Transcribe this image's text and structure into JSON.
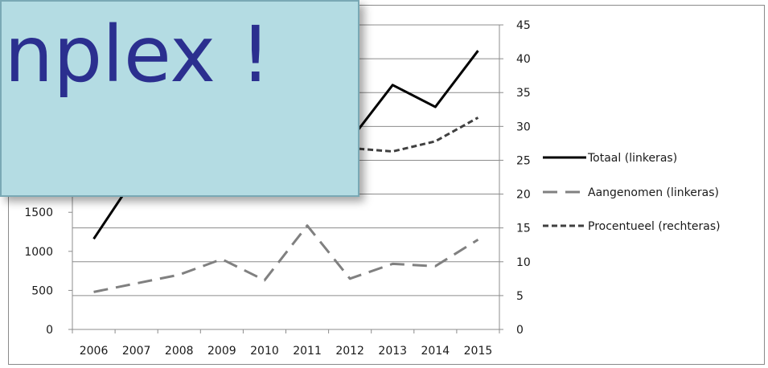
{
  "chart_data": {
    "type": "line",
    "categories": [
      "2006",
      "2007",
      "2008",
      "2009",
      "2010",
      "2011",
      "2012",
      "2013",
      "2014",
      "2015"
    ],
    "series": [
      {
        "name": "Totaal (linkeras)",
        "axis": "left",
        "style": "solid",
        "color": "#000000",
        "values": [
          1160,
          1980,
          null,
          null,
          null,
          null,
          2420,
          3130,
          2850,
          3570
        ]
      },
      {
        "name": "Aangenomen (linkeras)",
        "axis": "left",
        "style": "long-dash",
        "color": "#808080",
        "values": [
          480,
          590,
          700,
          900,
          630,
          1330,
          650,
          840,
          810,
          1150
        ]
      },
      {
        "name": "Procentueel (rechteras)",
        "axis": "right",
        "style": "short-dash",
        "color": "#404040",
        "values": [
          null,
          null,
          null,
          null,
          null,
          null,
          26.8,
          26.3,
          27.8,
          31.3
        ]
      }
    ],
    "left_axis": {
      "ticks": [
        0,
        500,
        1000,
        1500
      ],
      "ylim": [
        0,
        3900
      ]
    },
    "right_axis": {
      "ticks": [
        0,
        5,
        10,
        15,
        20,
        25,
        30,
        35,
        40,
        45
      ],
      "ylim": [
        0,
        45
      ]
    },
    "grid": true,
    "legend": "right",
    "title": "",
    "xlabel": "",
    "ylabel": ""
  },
  "overlay": {
    "text": "nplex !"
  }
}
